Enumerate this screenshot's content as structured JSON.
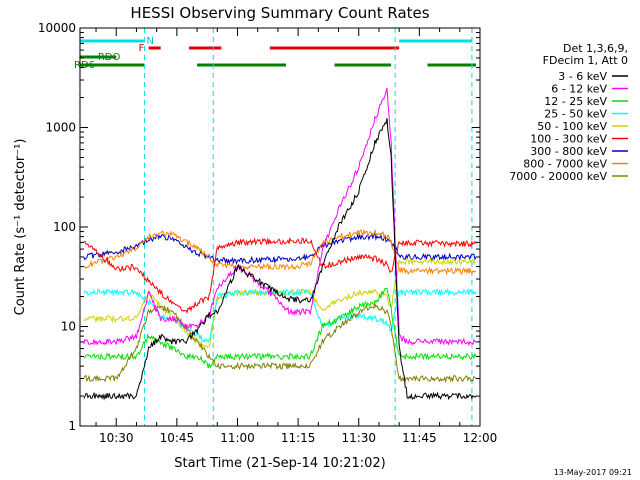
{
  "chart_data": {
    "type": "line",
    "title": "HESSI Observing Summary Count Rates",
    "xlabel": "Start Time (21-Sep-14 10:21:02)",
    "ylabel": "Count Rate (s⁻¹ detector⁻¹)",
    "footer": "13-May-2017 09:21",
    "yscale": "log",
    "ylim": [
      1,
      10000
    ],
    "xlim": [
      "10:21:02",
      "12:00:00"
    ],
    "ytick_labels": [
      "1",
      "10",
      "100",
      "1000",
      "10000"
    ],
    "xtick_labels": [
      "10:30",
      "10:45",
      "11:00",
      "11:15",
      "11:30",
      "11:45",
      "12:00"
    ],
    "legend_header": [
      "Det 1,3,6,9,",
      "FDecim 1, Att 0"
    ],
    "legend_position": "right",
    "flag_labels": {
      "n": "N",
      "f": "F",
      "rdo": "RDO",
      "rd6": "RD6"
    },
    "flags": {
      "n": [
        "10:21",
        "10:37",
        "11:40",
        "11:58"
      ],
      "f": [
        "10:38",
        "10:41",
        "10:48",
        "10:56",
        "11:08",
        "11:40"
      ],
      "rdo": [
        "10:21",
        "10:30"
      ],
      "rd6": [
        "10:21",
        "10:37",
        "10:50",
        "11:12",
        "11:24",
        "11:38",
        "11:47",
        "11:59"
      ]
    },
    "vlines": [
      "10:21",
      "10:37",
      "10:54",
      "11:39",
      "11:58"
    ],
    "x": [
      "10:22",
      "10:30",
      "10:35",
      "10:38",
      "10:41",
      "10:44",
      "10:47",
      "10:50",
      "10:53",
      "10:55",
      "11:00",
      "11:08",
      "11:13",
      "11:18",
      "11:21",
      "11:25",
      "11:30",
      "11:34",
      "11:37",
      "11:38",
      "11:40",
      "11:42",
      "11:48",
      "11:55",
      "11:59"
    ],
    "series": [
      {
        "name": "3 - 6 keV",
        "color": "#000000",
        "values": [
          2,
          2,
          2,
          6,
          8,
          7,
          7,
          9,
          13,
          14,
          40,
          24,
          19,
          18,
          40,
          100,
          230,
          700,
          1200,
          500,
          6,
          2,
          2,
          2,
          2
        ]
      },
      {
        "name": "6 - 12 keV",
        "color": "#ff00ff",
        "values": [
          7,
          7,
          8,
          22,
          12,
          12,
          10,
          10,
          13,
          24,
          40,
          22,
          14,
          14,
          60,
          150,
          400,
          1200,
          2500,
          700,
          8,
          7,
          7,
          7,
          7
        ]
      },
      {
        "name": "12 - 25 keV",
        "color": "#00e000",
        "values": [
          5,
          5,
          5,
          8,
          7,
          6,
          5,
          5,
          4,
          5,
          5,
          5,
          5,
          5,
          10,
          12,
          16,
          17,
          25,
          15,
          5,
          5,
          5,
          5,
          5
        ]
      },
      {
        "name": "25 - 50 keV",
        "color": "#00ffff",
        "values": [
          22,
          22,
          22,
          18,
          13,
          12,
          10,
          8,
          7,
          20,
          22,
          22,
          22,
          22,
          10,
          12,
          13,
          12,
          11,
          9,
          22,
          22,
          22,
          22,
          22
        ]
      },
      {
        "name": "50 - 100 keV",
        "color": "#d0d000",
        "values": [
          12,
          12,
          12,
          22,
          16,
          12,
          9,
          7,
          6,
          20,
          22,
          22,
          22,
          22,
          15,
          18,
          22,
          22,
          20,
          15,
          45,
          45,
          45,
          45,
          45
        ]
      },
      {
        "name": "100 - 300 keV",
        "color": "#ff0000",
        "values": [
          72,
          38,
          40,
          28,
          22,
          17,
          14,
          17,
          20,
          62,
          70,
          72,
          72,
          72,
          40,
          45,
          50,
          48,
          42,
          35,
          70,
          70,
          68,
          68,
          68
        ]
      },
      {
        "name": "300 - 800 keV",
        "color": "#0000c0",
        "values": [
          50,
          56,
          64,
          75,
          80,
          76,
          65,
          55,
          50,
          46,
          46,
          47,
          48,
          50,
          65,
          72,
          80,
          80,
          75,
          70,
          52,
          50,
          50,
          50,
          50
        ]
      },
      {
        "name": "800 - 7000 keV",
        "color": "#ff8000",
        "values": [
          40,
          50,
          62,
          80,
          88,
          84,
          72,
          60,
          50,
          42,
          40,
          40,
          40,
          42,
          70,
          80,
          88,
          88,
          82,
          72,
          38,
          36,
          36,
          36,
          36
        ]
      },
      {
        "name": "7000 - 20000 keV",
        "color": "#808000",
        "values": [
          3,
          3,
          6,
          14,
          16,
          14,
          10,
          7,
          5,
          4,
          4,
          4,
          4,
          4,
          7,
          10,
          14,
          16,
          14,
          10,
          3,
          3,
          3,
          3,
          3
        ]
      }
    ]
  }
}
